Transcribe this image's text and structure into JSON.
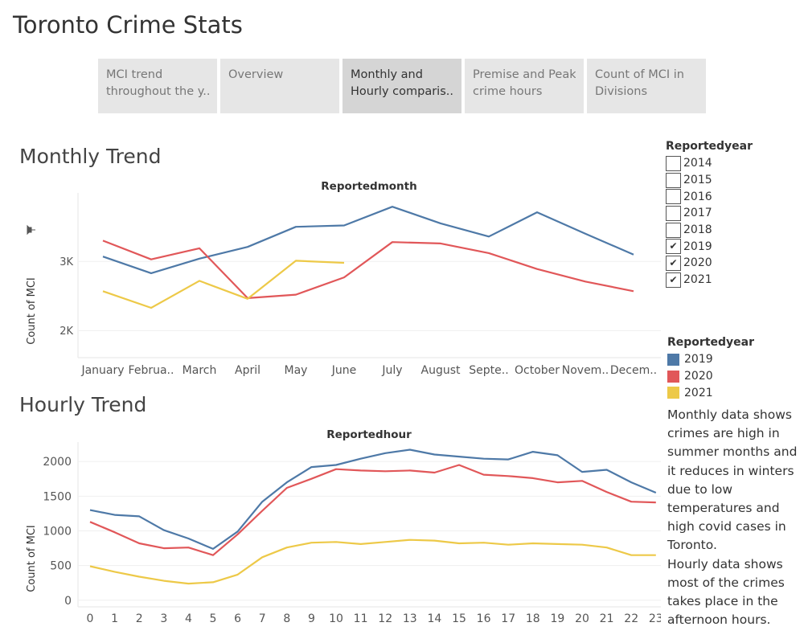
{
  "page_title": "Toronto Crime Stats",
  "tabs": [
    {
      "line1": "MCI trend",
      "line2": "throughout the y.."
    },
    {
      "line1": "Overview",
      "line2": ""
    },
    {
      "line1": "Monthly and",
      "line2": "Hourly comparis.."
    },
    {
      "line1": "Premise and Peak",
      "line2": "crime hours"
    },
    {
      "line1": "Count of MCI in",
      "line2": "Divisions"
    }
  ],
  "active_tab": 2,
  "monthly": {
    "section_title": "Monthly Trend",
    "header": "Reportedmonth",
    "ylabel": "Count of MCI",
    "yticks": [
      "3K",
      "2K"
    ]
  },
  "hourly": {
    "section_title": "Hourly Trend",
    "header": "Reportedhour",
    "ylabel": "Count of MCI",
    "yticks": [
      "2000",
      "1500",
      "1000",
      "500",
      "0"
    ]
  },
  "filter": {
    "title": "Reportedyear",
    "items": [
      {
        "label": "2014",
        "checked": false
      },
      {
        "label": "2015",
        "checked": false
      },
      {
        "label": "2016",
        "checked": false
      },
      {
        "label": "2017",
        "checked": false
      },
      {
        "label": "2018",
        "checked": false
      },
      {
        "label": "2019",
        "checked": true
      },
      {
        "label": "2020",
        "checked": true
      },
      {
        "label": "2021",
        "checked": true
      }
    ]
  },
  "color_legend": {
    "title": "Reportedyear",
    "items": [
      {
        "label": "2019",
        "color": "#4e79a7"
      },
      {
        "label": "2020",
        "color": "#e15759"
      },
      {
        "label": "2021",
        "color": "#edc948"
      }
    ]
  },
  "note": {
    "p1": "Monthly data shows crimes are high in summer months and it reduces in winters due to low temperatures and high covid cases in Toronto.",
    "p2": "Hourly data shows most of the crimes takes place in the afternoon hours."
  },
  "chart_data": [
    {
      "type": "line",
      "title": "Reportedmonth",
      "xlabel": "",
      "ylabel": "Count of MCI",
      "categories": [
        "January",
        "Februa..",
        "March",
        "April",
        "May",
        "June",
        "July",
        "August",
        "Septe..",
        "October",
        "Novem..",
        "Decem.."
      ],
      "ylim": [
        1610,
        3990
      ],
      "yticks": [
        2000,
        3000
      ],
      "series": [
        {
          "name": "2019",
          "color": "#4e79a7",
          "values": [
            3070,
            2830,
            3040,
            3210,
            3500,
            3520,
            3790,
            3550,
            3360,
            3710,
            3400,
            3100
          ]
        },
        {
          "name": "2020",
          "color": "#e15759",
          "values": [
            3300,
            3030,
            3190,
            2470,
            2520,
            2770,
            3280,
            3260,
            3120,
            2890,
            2710,
            2570
          ]
        },
        {
          "name": "2021",
          "color": "#edc948",
          "values": [
            2570,
            2330,
            2720,
            2460,
            3010,
            2980,
            null,
            null,
            null,
            null,
            null,
            null
          ]
        }
      ],
      "grid": true
    },
    {
      "type": "line",
      "title": "Reportedhour",
      "xlabel": "",
      "ylabel": "Count of MCI",
      "categories": [
        0,
        1,
        2,
        3,
        4,
        5,
        6,
        7,
        8,
        9,
        10,
        11,
        12,
        13,
        14,
        15,
        16,
        17,
        18,
        19,
        20,
        21,
        22,
        23
      ],
      "ylim": [
        -95,
        2280
      ],
      "yticks": [
        0,
        500,
        1000,
        1500,
        2000
      ],
      "series": [
        {
          "name": "2019",
          "color": "#4e79a7",
          "values": [
            1300,
            1230,
            1210,
            1010,
            890,
            740,
            990,
            1420,
            1700,
            1920,
            1950,
            2040,
            2120,
            2170,
            2100,
            2070,
            2040,
            2030,
            2140,
            2090,
            1850,
            1880,
            1700,
            1550
          ]
        },
        {
          "name": "2020",
          "color": "#e15759",
          "values": [
            1130,
            980,
            820,
            750,
            760,
            650,
            950,
            1290,
            1620,
            1750,
            1890,
            1870,
            1860,
            1870,
            1840,
            1950,
            1810,
            1790,
            1760,
            1700,
            1720,
            1560,
            1420,
            1410
          ]
        },
        {
          "name": "2021",
          "color": "#edc948",
          "values": [
            490,
            410,
            340,
            280,
            240,
            260,
            370,
            620,
            760,
            830,
            840,
            810,
            840,
            870,
            860,
            820,
            830,
            800,
            820,
            810,
            800,
            760,
            650,
            650
          ]
        }
      ],
      "grid": true
    }
  ]
}
